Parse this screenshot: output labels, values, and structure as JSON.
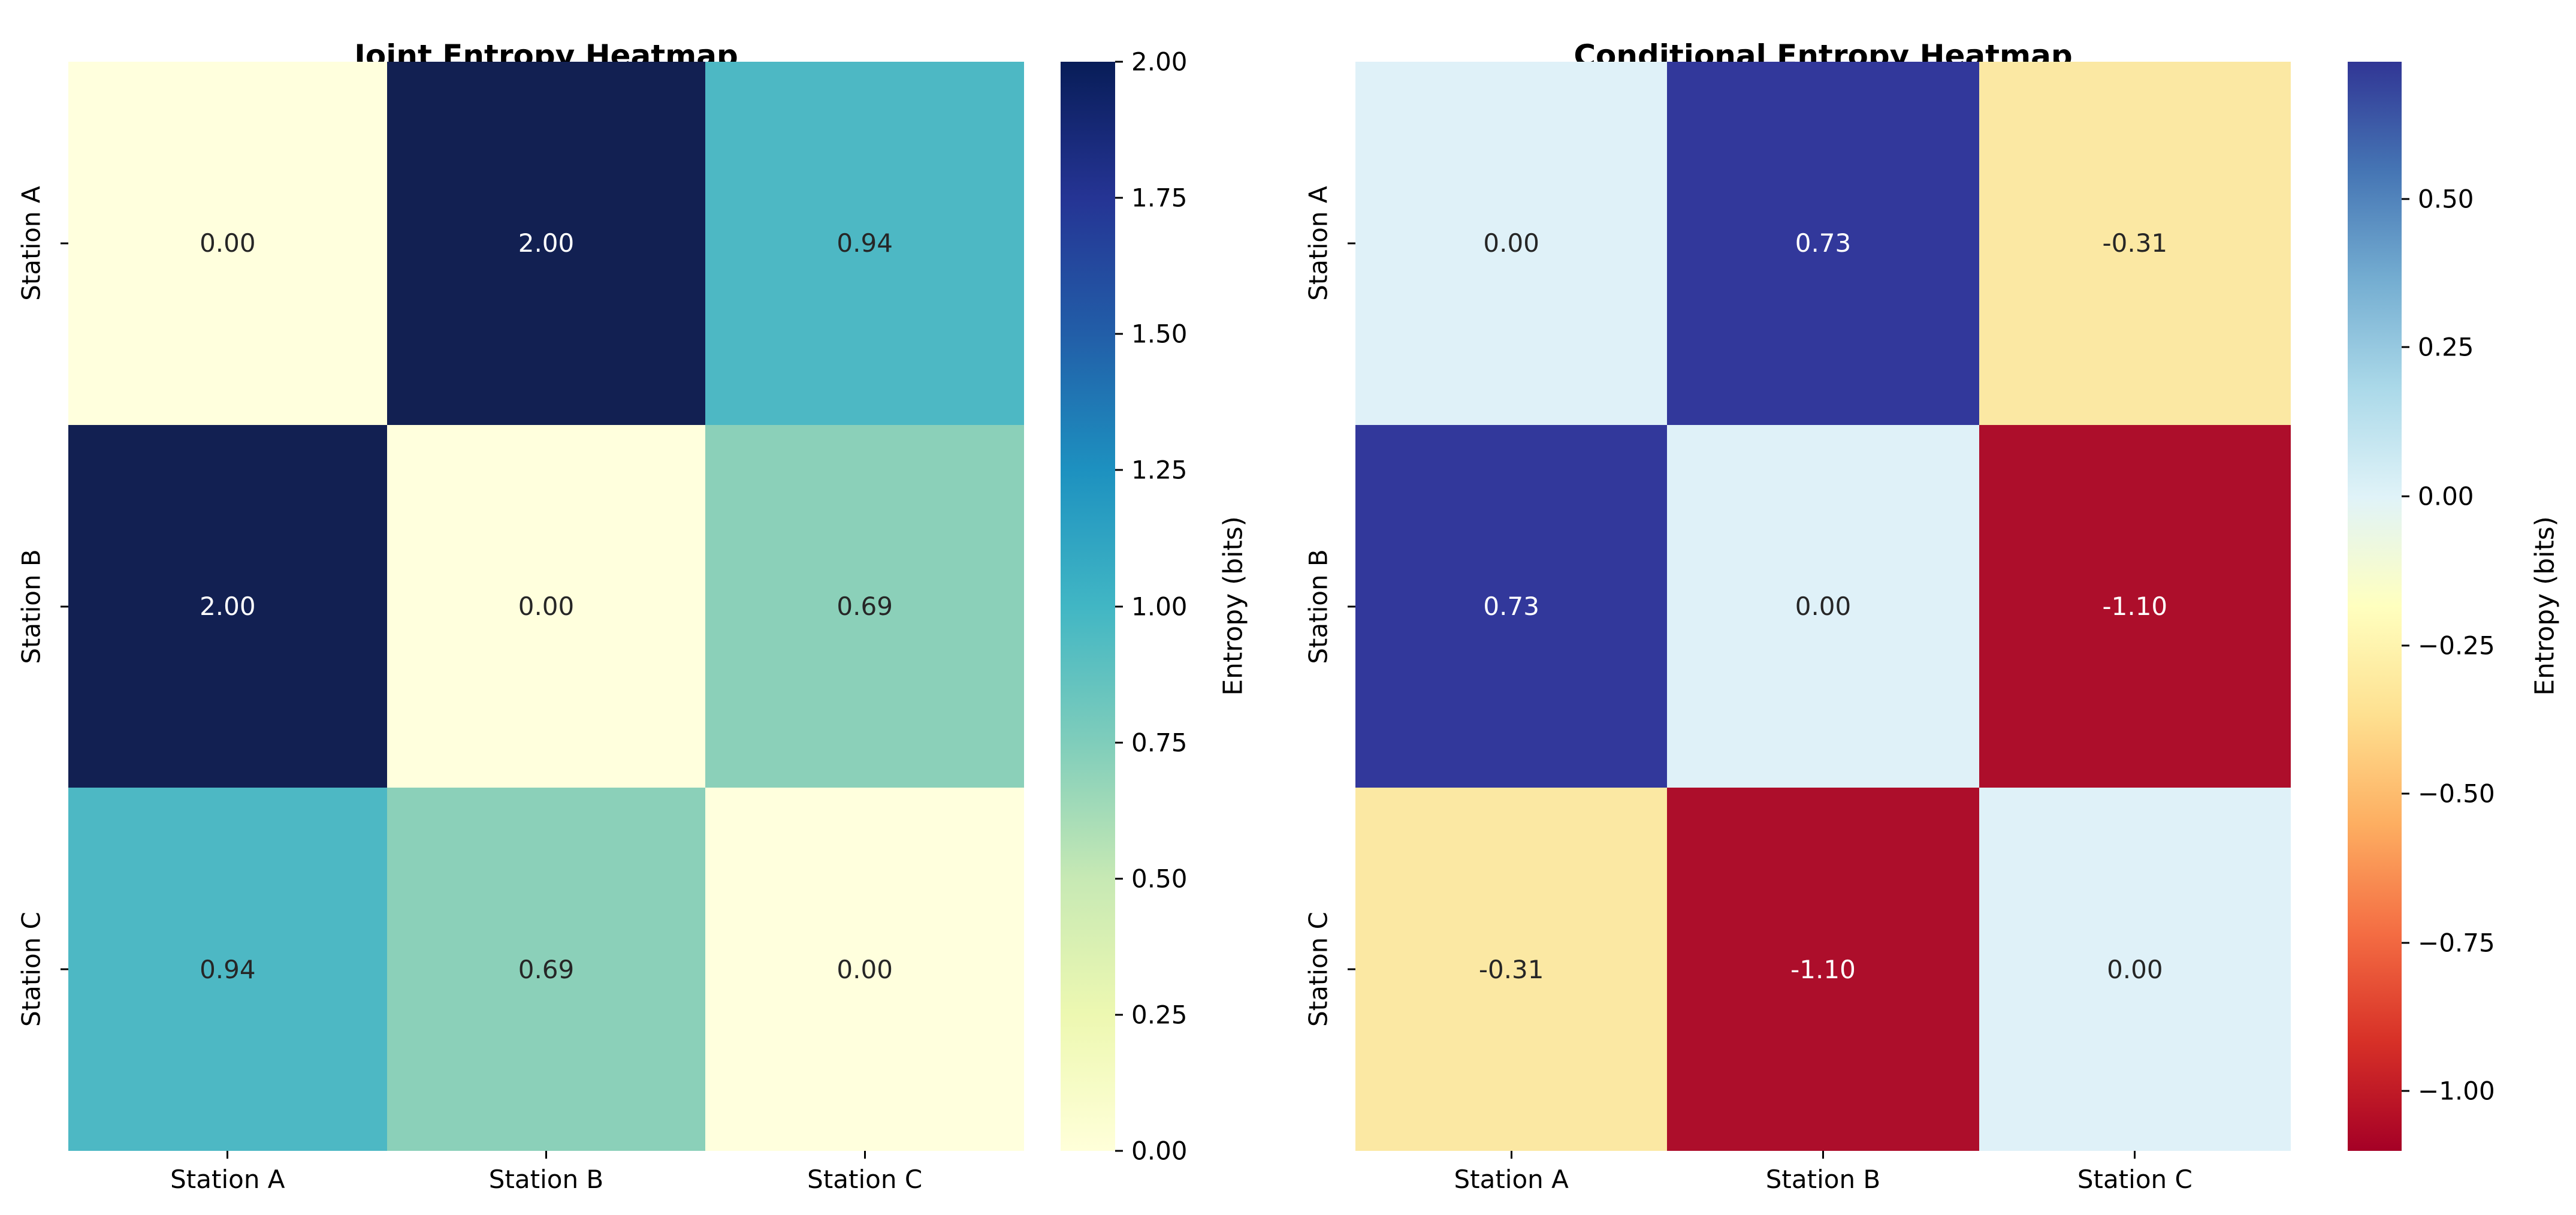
{
  "figure": {
    "background": "#ffffff"
  },
  "panels": [
    {
      "title": "Joint Entropy Heatmap",
      "x_ticks": [
        "Station A",
        "Station B",
        "Station C"
      ],
      "y_ticks": [
        "Station A",
        "Station B",
        "Station C"
      ],
      "cells": [
        {
          "label": "0.00",
          "bg": "#ffffdd",
          "fg": "#262626"
        },
        {
          "label": "2.00",
          "bg": "#122052",
          "fg": "#ffffff"
        },
        {
          "label": "0.94",
          "bg": "#4db8c4",
          "fg": "#262626"
        },
        {
          "label": "2.00",
          "bg": "#122052",
          "fg": "#ffffff"
        },
        {
          "label": "0.00",
          "bg": "#ffffdd",
          "fg": "#262626"
        },
        {
          "label": "0.69",
          "bg": "#8bd0b9",
          "fg": "#262626"
        },
        {
          "label": "0.94",
          "bg": "#4db8c4",
          "fg": "#262626"
        },
        {
          "label": "0.69",
          "bg": "#8bd0b9",
          "fg": "#262626"
        },
        {
          "label": "0.00",
          "bg": "#ffffdd",
          "fg": "#262626"
        }
      ],
      "colorbar": {
        "label": "Entropy (bits)",
        "gradient_bottom_to_top": [
          "#ffffd9",
          "#edf8b1",
          "#c7e9b4",
          "#7fcdbb",
          "#41b6c4",
          "#1d91c0",
          "#225ea8",
          "#253494",
          "#081d58"
        ],
        "ticks": [
          {
            "label": "2.00",
            "pos": 0.0
          },
          {
            "label": "1.75",
            "pos": 0.125
          },
          {
            "label": "1.50",
            "pos": 0.25
          },
          {
            "label": "1.25",
            "pos": 0.375
          },
          {
            "label": "1.00",
            "pos": 0.5
          },
          {
            "label": "0.75",
            "pos": 0.625
          },
          {
            "label": "0.50",
            "pos": 0.75
          },
          {
            "label": "0.25",
            "pos": 0.875
          },
          {
            "label": "0.00",
            "pos": 1.0
          }
        ]
      }
    },
    {
      "title": "Conditional Entropy Heatmap",
      "x_ticks": [
        "Station A",
        "Station B",
        "Station C"
      ],
      "y_ticks": [
        "Station A",
        "Station B",
        "Station C"
      ],
      "cells": [
        {
          "label": "0.00",
          "bg": "#dff1f8",
          "fg": "#262626"
        },
        {
          "label": "0.73",
          "bg": "#32389b",
          "fg": "#ffffff"
        },
        {
          "label": "-0.31",
          "bg": "#fbe8a3",
          "fg": "#262626"
        },
        {
          "label": "0.73",
          "bg": "#32389b",
          "fg": "#ffffff"
        },
        {
          "label": "0.00",
          "bg": "#dff1f8",
          "fg": "#262626"
        },
        {
          "label": "-1.10",
          "bg": "#ad0e2b",
          "fg": "#ffffff"
        },
        {
          "label": "-0.31",
          "bg": "#fbe8a3",
          "fg": "#262626"
        },
        {
          "label": "-1.10",
          "bg": "#ad0e2b",
          "fg": "#ffffff"
        },
        {
          "label": "0.00",
          "bg": "#dff1f8",
          "fg": "#262626"
        }
      ],
      "colorbar": {
        "label": "Entropy (bits)",
        "gradient_bottom_to_top": [
          "#a50026",
          "#d73027",
          "#f46d43",
          "#fdae61",
          "#fee090",
          "#ffffbf",
          "#e0f3f8",
          "#abd9e9",
          "#74add1",
          "#4575b4",
          "#313695"
        ],
        "ticks": [
          {
            "label": "0.50",
            "pos": 0.126
          },
          {
            "label": "0.25",
            "pos": 0.262
          },
          {
            "label": "0.00",
            "pos": 0.399
          },
          {
            "label": "−0.25",
            "pos": 0.536
          },
          {
            "label": "−0.50",
            "pos": 0.672
          },
          {
            "label": "−0.75",
            "pos": 0.809
          },
          {
            "label": "−1.00",
            "pos": 0.945
          }
        ]
      }
    }
  ],
  "chart_data": [
    {
      "type": "heatmap",
      "title": "Joint Entropy Heatmap",
      "x_labels": [
        "Station A",
        "Station B",
        "Station C"
      ],
      "y_labels": [
        "Station A",
        "Station B",
        "Station C"
      ],
      "values": [
        [
          0.0,
          2.0,
          0.94
        ],
        [
          2.0,
          0.0,
          0.69
        ],
        [
          0.94,
          0.69,
          0.0
        ]
      ],
      "vmin": 0.0,
      "vmax": 2.0,
      "colormap": "YlGnBu",
      "colorbar_label": "Entropy (bits)",
      "colorbar_ticks": [
        0.0,
        0.25,
        0.5,
        0.75,
        1.0,
        1.25,
        1.5,
        1.75,
        2.0
      ],
      "annotated": true,
      "annotation_precision": 2,
      "legend_position": "right-colorbar",
      "grid": false
    },
    {
      "type": "heatmap",
      "title": "Conditional Entropy Heatmap",
      "x_labels": [
        "Station A",
        "Station B",
        "Station C"
      ],
      "y_labels": [
        "Station A",
        "Station B",
        "Station C"
      ],
      "values": [
        [
          0.0,
          0.73,
          -0.31
        ],
        [
          0.73,
          0.0,
          -1.1
        ],
        [
          -0.31,
          -1.1,
          0.0
        ]
      ],
      "vmin": -1.1,
      "vmax": 0.73,
      "colormap": "RdYlBu",
      "colorbar_label": "Entropy (bits)",
      "colorbar_ticks": [
        -1.0,
        -0.75,
        -0.5,
        -0.25,
        0.0,
        0.25,
        0.5
      ],
      "annotated": true,
      "annotation_precision": 2,
      "legend_position": "right-colorbar",
      "grid": false
    }
  ]
}
